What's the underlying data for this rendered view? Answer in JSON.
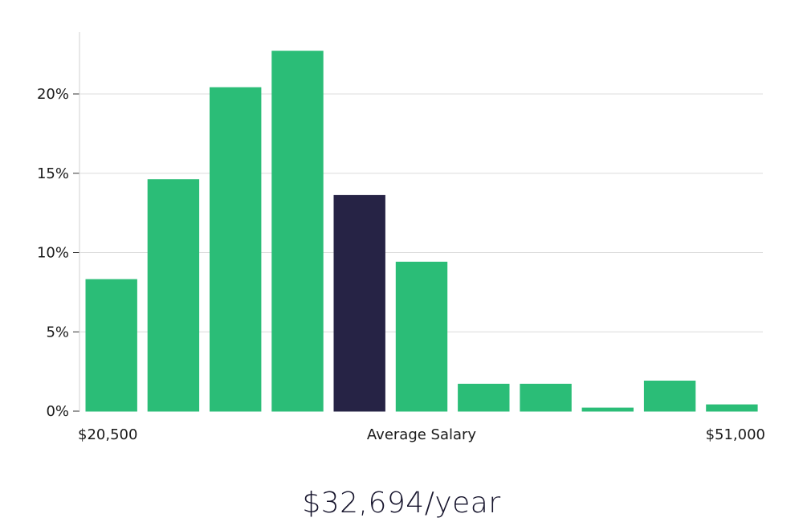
{
  "chart_data": {
    "type": "bar",
    "ylim": [
      0,
      24
    ],
    "y_ticks": [
      0,
      5,
      10,
      15,
      20
    ],
    "y_tick_labels": [
      "0%",
      "5%",
      "10%",
      "15%",
      "20%"
    ],
    "values": [
      8.3,
      14.6,
      20.4,
      22.7,
      13.6,
      9.4,
      1.7,
      1.7,
      0.2,
      1.9,
      0.4
    ],
    "highlight_index": 4,
    "bar_color": "#2bbd77",
    "highlight_color": "#262345",
    "grid": true,
    "x_labels": {
      "left": "$20,500",
      "center": "Average Salary",
      "right": "$51,000"
    }
  },
  "average_salary": "$32,694/year"
}
